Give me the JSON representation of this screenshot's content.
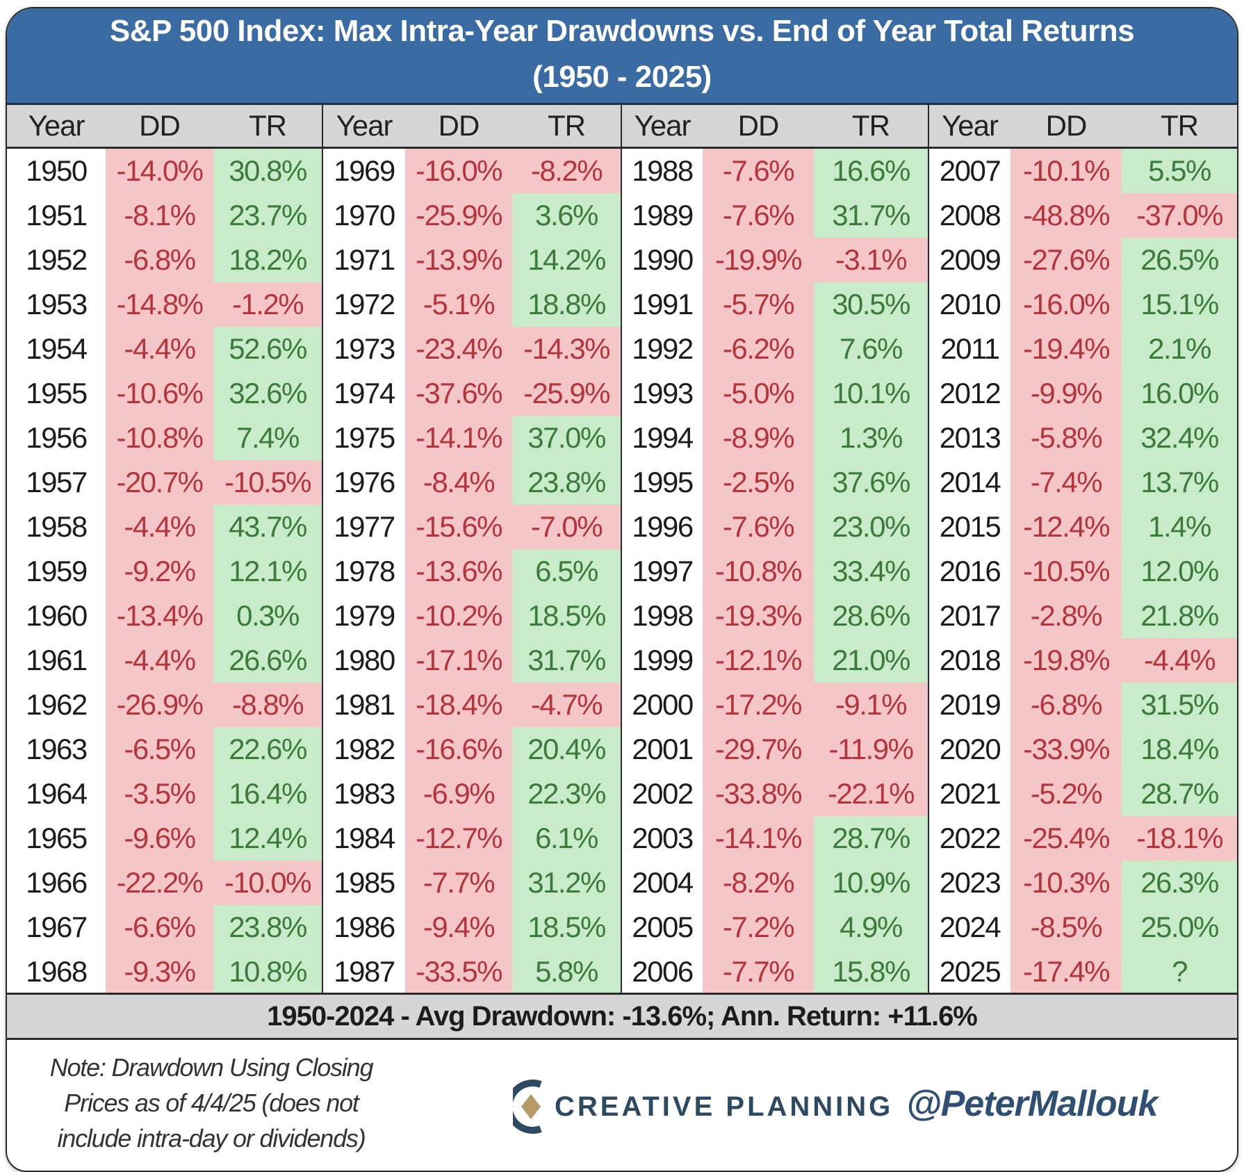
{
  "colors": {
    "title_bg": "#3a6ca3",
    "neg_bg": "#f5c6c8",
    "neg_text": "#b3343a",
    "pos_bg": "#c8ecc9",
    "pos_text": "#3b7a3b"
  },
  "chart_data": {
    "type": "table",
    "title": "S&P 500 Index: Max Intra-Year Drawdowns vs. End of Year Total Returns",
    "subtitle": "(1950 - 2025)",
    "columns": [
      "Year",
      "DD",
      "TR"
    ],
    "groups": [
      [
        [
          "1950",
          "-14.0%",
          "30.8%"
        ],
        [
          "1951",
          "-8.1%",
          "23.7%"
        ],
        [
          "1952",
          "-6.8%",
          "18.2%"
        ],
        [
          "1953",
          "-14.8%",
          "-1.2%"
        ],
        [
          "1954",
          "-4.4%",
          "52.6%"
        ],
        [
          "1955",
          "-10.6%",
          "32.6%"
        ],
        [
          "1956",
          "-10.8%",
          "7.4%"
        ],
        [
          "1957",
          "-20.7%",
          "-10.5%"
        ],
        [
          "1958",
          "-4.4%",
          "43.7%"
        ],
        [
          "1959",
          "-9.2%",
          "12.1%"
        ],
        [
          "1960",
          "-13.4%",
          "0.3%"
        ],
        [
          "1961",
          "-4.4%",
          "26.6%"
        ],
        [
          "1962",
          "-26.9%",
          "-8.8%"
        ],
        [
          "1963",
          "-6.5%",
          "22.6%"
        ],
        [
          "1964",
          "-3.5%",
          "16.4%"
        ],
        [
          "1965",
          "-9.6%",
          "12.4%"
        ],
        [
          "1966",
          "-22.2%",
          "-10.0%"
        ],
        [
          "1967",
          "-6.6%",
          "23.8%"
        ],
        [
          "1968",
          "-9.3%",
          "10.8%"
        ]
      ],
      [
        [
          "1969",
          "-16.0%",
          "-8.2%"
        ],
        [
          "1970",
          "-25.9%",
          "3.6%"
        ],
        [
          "1971",
          "-13.9%",
          "14.2%"
        ],
        [
          "1972",
          "-5.1%",
          "18.8%"
        ],
        [
          "1973",
          "-23.4%",
          "-14.3%"
        ],
        [
          "1974",
          "-37.6%",
          "-25.9%"
        ],
        [
          "1975",
          "-14.1%",
          "37.0%"
        ],
        [
          "1976",
          "-8.4%",
          "23.8%"
        ],
        [
          "1977",
          "-15.6%",
          "-7.0%"
        ],
        [
          "1978",
          "-13.6%",
          "6.5%"
        ],
        [
          "1979",
          "-10.2%",
          "18.5%"
        ],
        [
          "1980",
          "-17.1%",
          "31.7%"
        ],
        [
          "1981",
          "-18.4%",
          "-4.7%"
        ],
        [
          "1982",
          "-16.6%",
          "20.4%"
        ],
        [
          "1983",
          "-6.9%",
          "22.3%"
        ],
        [
          "1984",
          "-12.7%",
          "6.1%"
        ],
        [
          "1985",
          "-7.7%",
          "31.2%"
        ],
        [
          "1986",
          "-9.4%",
          "18.5%"
        ],
        [
          "1987",
          "-33.5%",
          "5.8%"
        ]
      ],
      [
        [
          "1988",
          "-7.6%",
          "16.6%"
        ],
        [
          "1989",
          "-7.6%",
          "31.7%"
        ],
        [
          "1990",
          "-19.9%",
          "-3.1%"
        ],
        [
          "1991",
          "-5.7%",
          "30.5%"
        ],
        [
          "1992",
          "-6.2%",
          "7.6%"
        ],
        [
          "1993",
          "-5.0%",
          "10.1%"
        ],
        [
          "1994",
          "-8.9%",
          "1.3%"
        ],
        [
          "1995",
          "-2.5%",
          "37.6%"
        ],
        [
          "1996",
          "-7.6%",
          "23.0%"
        ],
        [
          "1997",
          "-10.8%",
          "33.4%"
        ],
        [
          "1998",
          "-19.3%",
          "28.6%"
        ],
        [
          "1999",
          "-12.1%",
          "21.0%"
        ],
        [
          "2000",
          "-17.2%",
          "-9.1%"
        ],
        [
          "2001",
          "-29.7%",
          "-11.9%"
        ],
        [
          "2002",
          "-33.8%",
          "-22.1%"
        ],
        [
          "2003",
          "-14.1%",
          "28.7%"
        ],
        [
          "2004",
          "-8.2%",
          "10.9%"
        ],
        [
          "2005",
          "-7.2%",
          "4.9%"
        ],
        [
          "2006",
          "-7.7%",
          "15.8%"
        ]
      ],
      [
        [
          "2007",
          "-10.1%",
          "5.5%"
        ],
        [
          "2008",
          "-48.8%",
          "-37.0%"
        ],
        [
          "2009",
          "-27.6%",
          "26.5%"
        ],
        [
          "2010",
          "-16.0%",
          "15.1%"
        ],
        [
          "2011",
          "-19.4%",
          "2.1%"
        ],
        [
          "2012",
          "-9.9%",
          "16.0%"
        ],
        [
          "2013",
          "-5.8%",
          "32.4%"
        ],
        [
          "2014",
          "-7.4%",
          "13.7%"
        ],
        [
          "2015",
          "-12.4%",
          "1.4%"
        ],
        [
          "2016",
          "-10.5%",
          "12.0%"
        ],
        [
          "2017",
          "-2.8%",
          "21.8%"
        ],
        [
          "2018",
          "-19.8%",
          "-4.4%"
        ],
        [
          "2019",
          "-6.8%",
          "31.5%"
        ],
        [
          "2020",
          "-33.9%",
          "18.4%"
        ],
        [
          "2021",
          "-5.2%",
          "28.7%"
        ],
        [
          "2022",
          "-25.4%",
          "-18.1%"
        ],
        [
          "2023",
          "-10.3%",
          "26.3%"
        ],
        [
          "2024",
          "-8.5%",
          "25.0%"
        ],
        [
          "2025",
          "-17.4%",
          "?"
        ]
      ]
    ],
    "summary": "1950-2024 - Avg Drawdown: -13.6%; Ann. Return: +11.6%"
  },
  "footer": {
    "note_lines": [
      "Note: Drawdown Using Closing",
      "Prices as of 4/4/25 (does not",
      "include intra-day or dividends)"
    ],
    "logo_text": "CREATIVE PLANNING",
    "handle": "@PeterMallouk"
  }
}
